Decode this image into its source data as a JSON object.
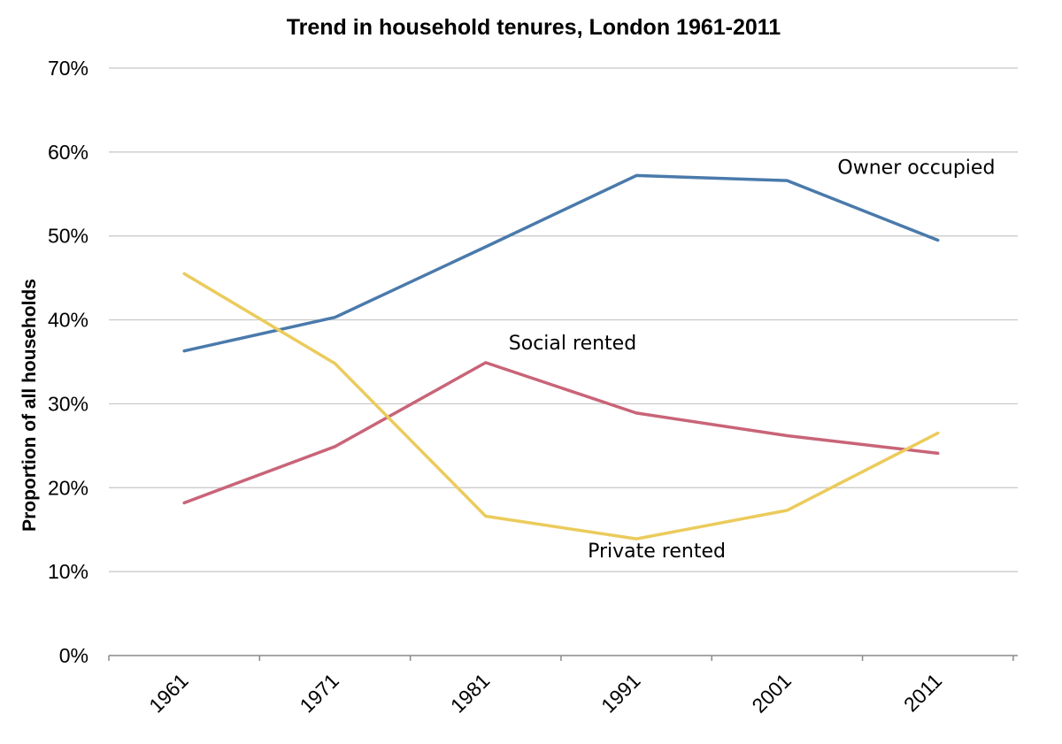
{
  "chart_data": {
    "type": "line",
    "title": "Trend in household tenures, London 1961-2011",
    "xlabel": "",
    "ylabel": "Proportion of all households",
    "ylim": [
      0,
      70
    ],
    "yticks": [
      "0%",
      "10%",
      "20%",
      "30%",
      "40%",
      "50%",
      "60%",
      "70%"
    ],
    "categories": [
      "1961",
      "1971",
      "1981",
      "1991",
      "2001",
      "2011"
    ],
    "series": [
      {
        "name": "Owner occupied",
        "color": "#4a7aab",
        "values": [
          36.3,
          40.3,
          48.7,
          57.2,
          56.6,
          49.5
        ]
      },
      {
        "name": "Social rented",
        "color": "#c96478",
        "values": [
          18.2,
          24.9,
          34.9,
          28.9,
          26.2,
          24.1
        ]
      },
      {
        "name": "Private rented",
        "color": "#ebcb5c",
        "values": [
          45.5,
          34.8,
          16.6,
          13.9,
          17.3,
          26.5
        ]
      }
    ]
  }
}
